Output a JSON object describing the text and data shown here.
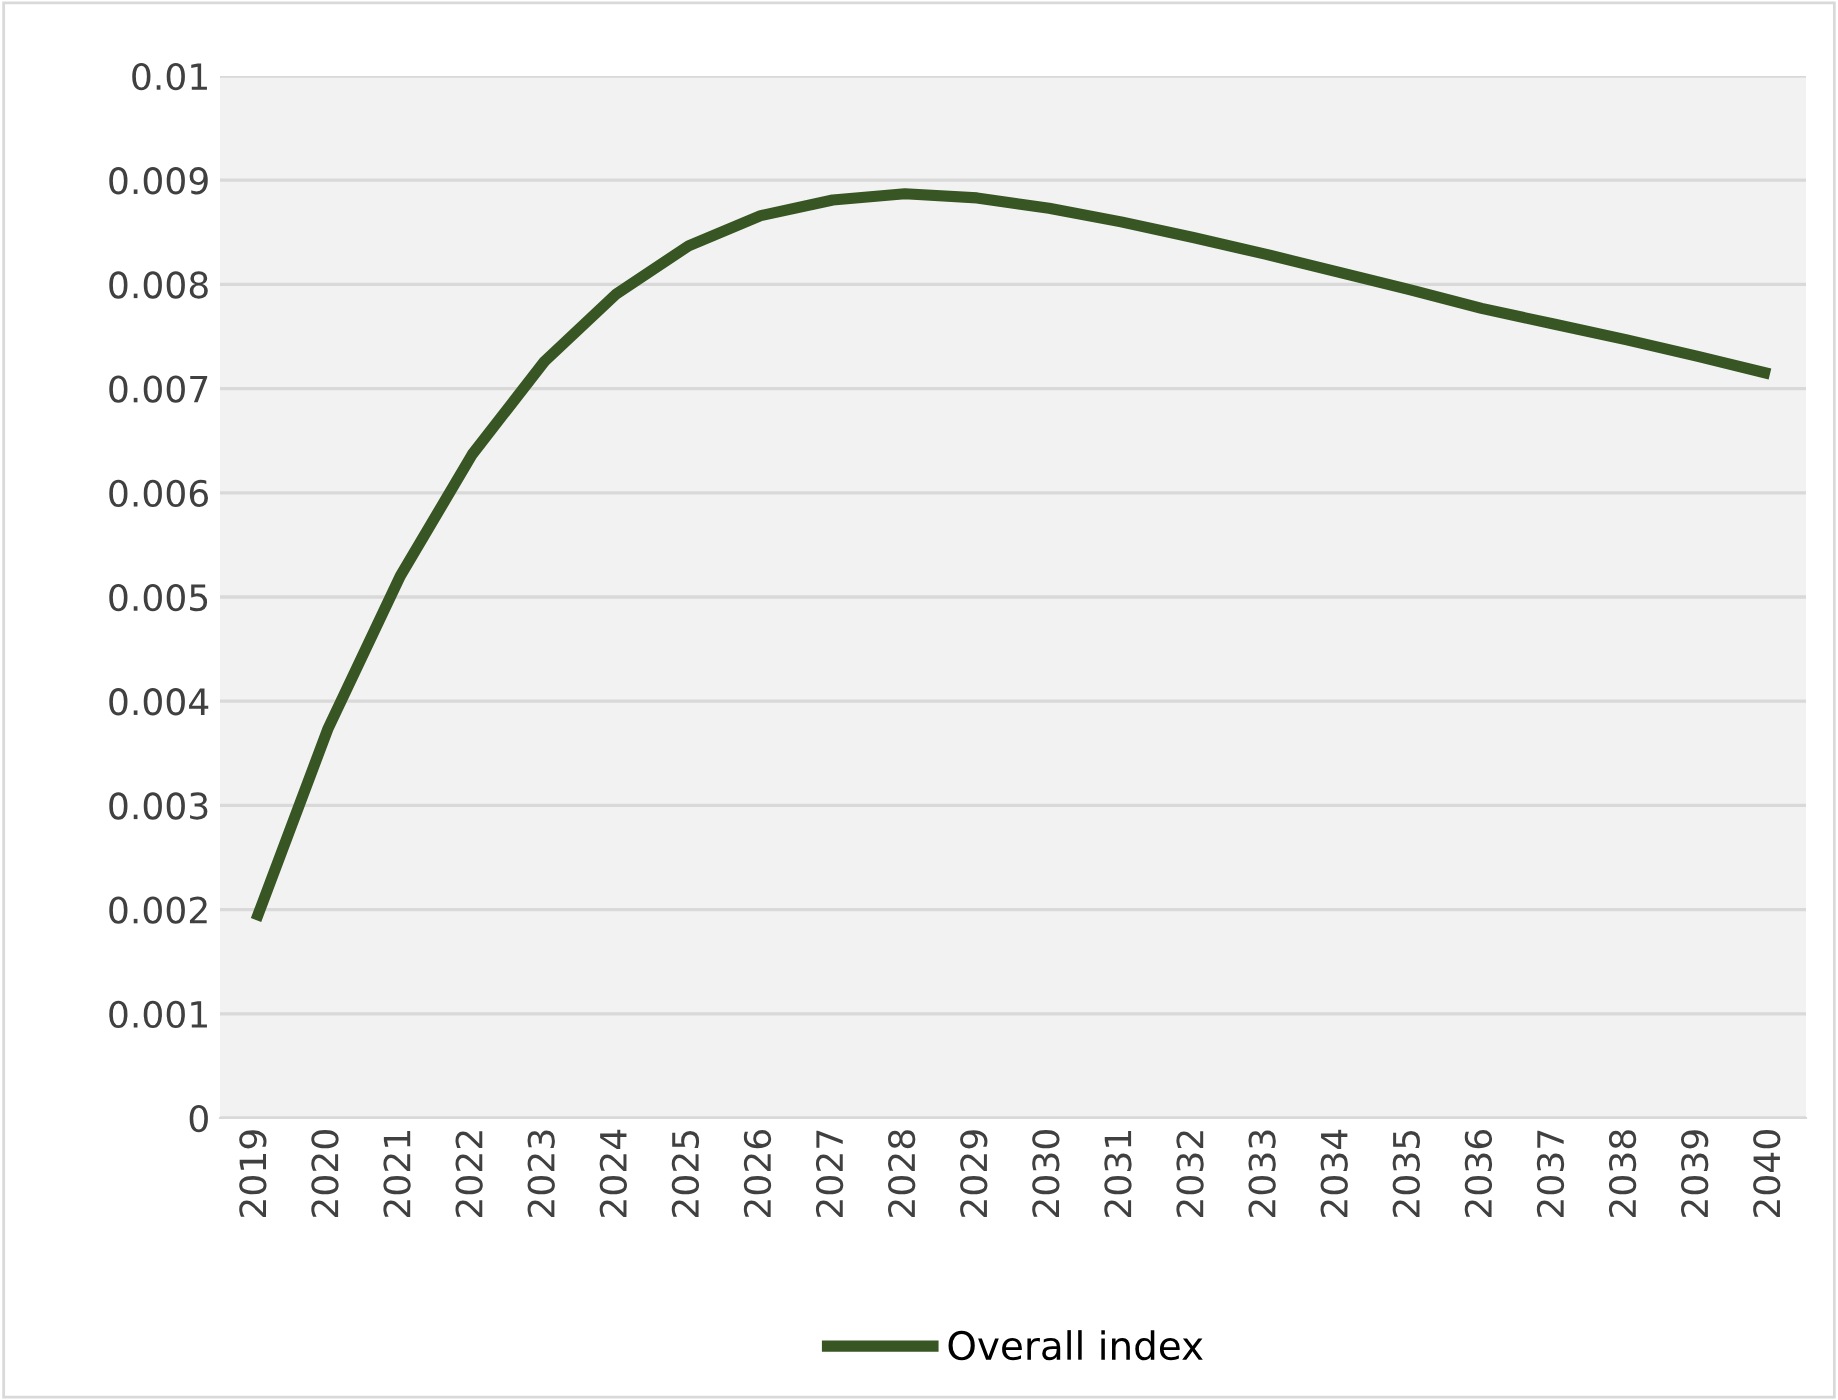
{
  "chart_data": {
    "type": "line",
    "categories": [
      "2019",
      "2020",
      "2021",
      "2022",
      "2023",
      "2024",
      "2025",
      "2026",
      "2027",
      "2028",
      "2029",
      "2030",
      "2031",
      "2032",
      "2033",
      "2034",
      "2035",
      "2036",
      "2037",
      "2038",
      "2039",
      "2040"
    ],
    "series": [
      {
        "name": "Overall index",
        "color": "#375623",
        "values": [
          0.0019,
          0.00374,
          0.0052,
          0.00637,
          0.00726,
          0.00791,
          0.00837,
          0.00866,
          0.00881,
          0.00887,
          0.00883,
          0.00873,
          0.0086,
          0.00845,
          0.00829,
          0.00812,
          0.00795,
          0.00777,
          0.00762,
          0.00747,
          0.00731,
          0.00714
        ]
      }
    ],
    "ylim": [
      0,
      0.01
    ],
    "yticks": [
      0,
      0.001,
      0.002,
      0.003,
      0.004,
      0.005,
      0.006,
      0.007,
      0.008,
      0.009,
      0.01
    ],
    "grid": "y",
    "legend": "bottom",
    "marker": "none",
    "line_style": "solid"
  }
}
